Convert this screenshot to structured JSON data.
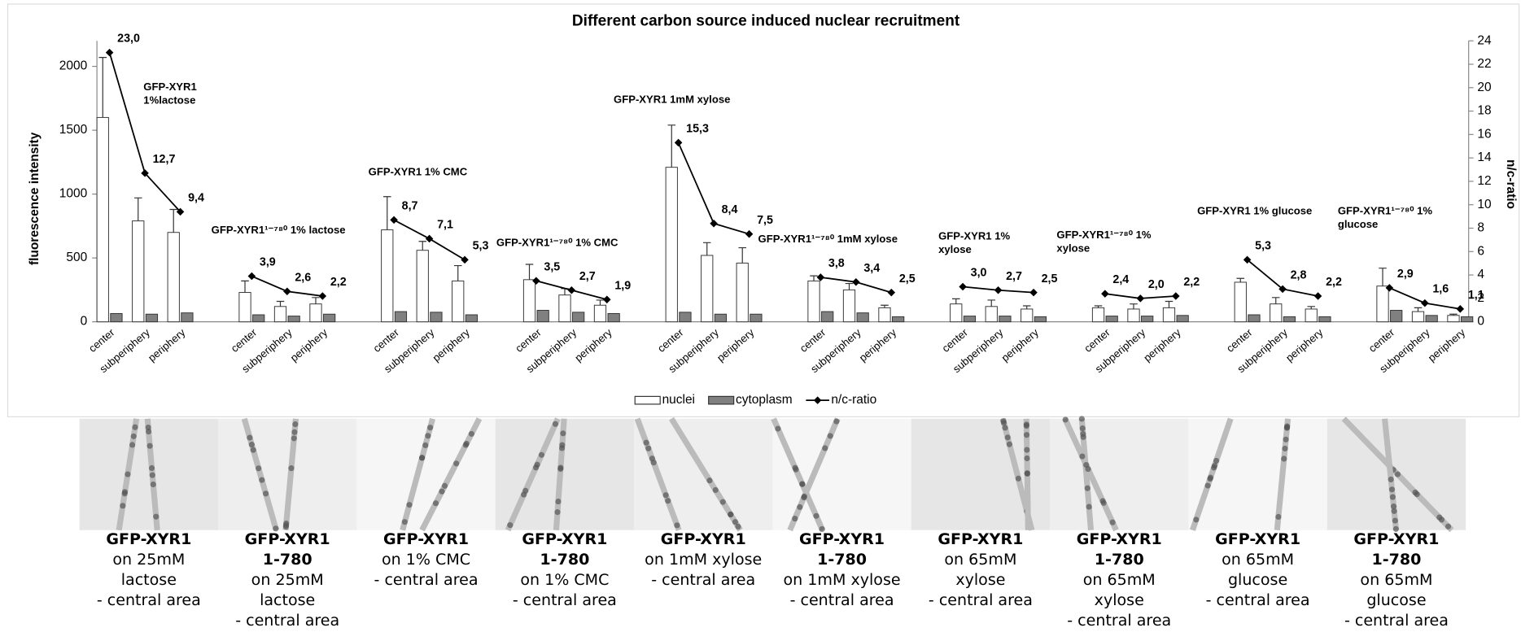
{
  "chart_data": {
    "type": "bar",
    "title": "Different carbon source induced nuclear recruitment",
    "y_label": "fluorescence  intensity",
    "y2_label": "n/c-ratio",
    "categories": [
      "center",
      "subperiphery",
      "periphery",
      "center",
      "subperiphery",
      "periphery",
      "center",
      "subperiphery",
      "periphery",
      "center",
      "subperiphery",
      "periphery",
      "center",
      "subperiphery",
      "periphery",
      "center",
      "subperiphery",
      "periphery",
      "center",
      "subperiphery",
      "periphery",
      "center",
      "subperiphery",
      "periphery",
      "center",
      "subperiphery",
      "periphery",
      "center",
      "subperiphery",
      "periphery"
    ],
    "groups": [
      [
        "GFP-XYR1",
        "1%lactose"
      ],
      [
        "GFP-XYR1¹⁻⁷⁸⁰  1% lactose"
      ],
      [
        "GFP-XYR1 1% CMC"
      ],
      [
        "GFP-XYR1¹⁻⁷⁸⁰  1%  CMC"
      ],
      [
        "GFP-XYR1 1mM xylose"
      ],
      [
        "GFP-XYR1¹⁻⁷⁸⁰  1mM xylose"
      ],
      [
        "GFP-XYR1 1%",
        "xylose"
      ],
      [
        "GFP-XYR1¹⁻⁷⁸⁰  1%",
        "xylose"
      ],
      [
        "GFP-XYR1 1% glucose"
      ],
      [
        "GFP-XYR1¹⁻⁷⁸⁰  1%",
        "glucose"
      ]
    ],
    "series": [
      {
        "name": "nuclei",
        "color": "#ffffff",
        "values": [
          1600,
          790,
          700,
          230,
          120,
          140,
          720,
          560,
          320,
          330,
          210,
          130,
          1210,
          520,
          460,
          320,
          250,
          110,
          140,
          120,
          100,
          110,
          100,
          110,
          310,
          140,
          100,
          280,
          80,
          50
        ],
        "errors": [
          470,
          180,
          180,
          90,
          40,
          50,
          260,
          70,
          120,
          120,
          50,
          40,
          330,
          100,
          120,
          40,
          50,
          20,
          40,
          50,
          25,
          15,
          40,
          50,
          30,
          50,
          20,
          140,
          30,
          10
        ]
      },
      {
        "name": "cytoplasm",
        "color": "#808080",
        "values": [
          65,
          60,
          70,
          55,
          45,
          60,
          80,
          75,
          55,
          90,
          75,
          65,
          75,
          60,
          60,
          80,
          70,
          40,
          45,
          45,
          40,
          45,
          45,
          50,
          55,
          40,
          40,
          90,
          50,
          40
        ]
      },
      {
        "name": "n/c-ratio",
        "color": "#000000",
        "type": "line",
        "axis": "y2",
        "values": [
          23.0,
          12.7,
          9.4,
          3.9,
          2.6,
          2.2,
          8.7,
          7.1,
          5.3,
          3.5,
          2.7,
          1.9,
          15.3,
          8.4,
          7.5,
          3.8,
          3.4,
          2.5,
          3.0,
          2.7,
          2.5,
          2.4,
          2.0,
          2.2,
          5.3,
          2.8,
          2.2,
          2.9,
          1.6,
          1.1
        ],
        "value_labels": [
          "23,0",
          "12,7",
          "9,4",
          "3,9",
          "2,6",
          "2,2",
          "8,7",
          "7,1",
          "5,3",
          "3,5",
          "2,7",
          "1,9",
          "15,3",
          "8,4",
          "7,5",
          "3,8",
          "3,4",
          "2,5",
          "3,0",
          "2,7",
          "2,5",
          "2,4",
          "2,0",
          "2,2",
          "5,3",
          "2,8",
          "2,2",
          "2,9",
          "1,6",
          "1,1"
        ]
      }
    ],
    "ylim": [
      0,
      2200
    ],
    "yticks": [
      0,
      500,
      1000,
      1500,
      2000
    ],
    "y2lim": [
      0,
      24
    ],
    "y2ticks": [
      0,
      2,
      4,
      6,
      8,
      10,
      12,
      14,
      16,
      18,
      20,
      22,
      24
    ],
    "legend": "bottom"
  },
  "captions": [
    {
      "name": [
        "GFP-XYR1"
      ],
      "condition": [
        "on 25mM",
        "lactose",
        "- central area"
      ]
    },
    {
      "name": [
        "GFP-XYR1",
        "1-780"
      ],
      "condition": [
        "on 25mM",
        "lactose",
        "- central area"
      ]
    },
    {
      "name": [
        "GFP-XYR1"
      ],
      "condition": [
        "on 1% CMC",
        "- central area"
      ]
    },
    {
      "name": [
        "GFP-XYR1",
        "1-780"
      ],
      "condition": [
        "on 1% CMC",
        "- central area"
      ]
    },
    {
      "name": [
        "GFP-XYR1"
      ],
      "condition": [
        "on 1mM xylose",
        "- central area"
      ]
    },
    {
      "name": [
        "GFP-XYR1",
        "1-780"
      ],
      "condition": [
        "on 1mM xylose",
        "- central area"
      ]
    },
    {
      "name": [
        "GFP-XYR1"
      ],
      "condition": [
        "on 65mM",
        "xylose",
        "- central area"
      ]
    },
    {
      "name": [
        "GFP-XYR1",
        "1-780"
      ],
      "condition": [
        "on 65mM",
        "xylose",
        "- central area"
      ]
    },
    {
      "name": [
        "GFP-XYR1"
      ],
      "condition": [
        "on 65mM",
        "glucose",
        "- central area"
      ]
    },
    {
      "name": [
        "GFP-XYR1",
        "1-780"
      ],
      "condition": [
        "on 65mM",
        "glucose",
        "- central area"
      ]
    }
  ]
}
